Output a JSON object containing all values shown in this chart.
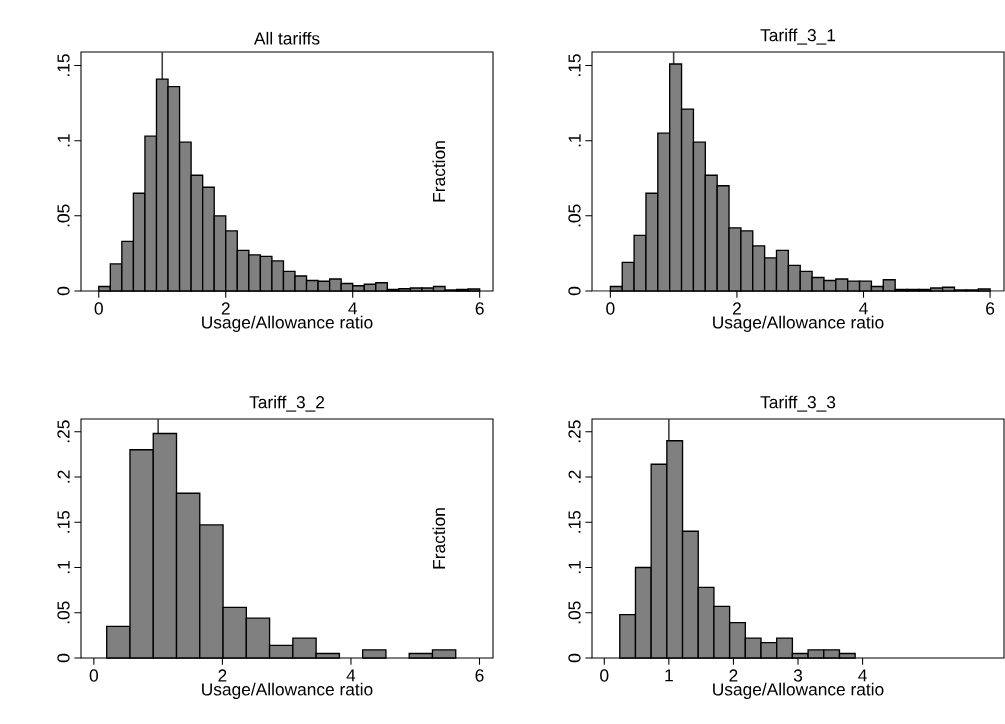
{
  "chart_data": [
    {
      "type": "histogram",
      "title": "All tariffs",
      "xlabel": "Usage/Allowance ratio",
      "color": "#808080",
      "bins": [
        0,
        0.1818,
        0.3636,
        0.5455,
        0.7273,
        0.9091,
        1.0909,
        1.2727,
        1.4545,
        1.6364,
        1.8182,
        2.0,
        2.1818,
        2.3636,
        2.5455,
        2.7273,
        2.9091,
        3.0909,
        3.2727,
        3.4545,
        3.6364,
        3.8182,
        4.0,
        4.1818,
        4.3636,
        4.5455,
        4.7273,
        4.9091,
        5.0909,
        5.2727,
        5.4545,
        5.6364,
        5.8182,
        6.0
      ],
      "values": [
        0.003,
        0.018,
        0.033,
        0.065,
        0.103,
        0.141,
        0.136,
        0.099,
        0.077,
        0.069,
        0.05,
        0.04,
        0.027,
        0.024,
        0.023,
        0.02,
        0.013,
        0.01,
        0.007,
        0.0065,
        0.008,
        0.005,
        0.0035,
        0.0045,
        0.0055,
        0.001,
        0.0015,
        0.002,
        0.002,
        0.003,
        0.0007,
        0.001,
        0.0013
      ],
      "xlim": [
        -0.28,
        6.21
      ],
      "ylim": [
        0,
        0.159
      ],
      "xticks": [
        0,
        2,
        4,
        6
      ],
      "yticks": [
        0,
        {
          "value": 0.05,
          "label": ".05"
        },
        {
          "value": 0.1,
          "label": ".1"
        },
        {
          "value": 0.15,
          "label": ".15"
        }
      ],
      "ref_lines": [
        {
          "axis": "x",
          "value": 1,
          "color": "#404040"
        }
      ]
    },
    {
      "type": "histogram",
      "title": "Tariff_3_1",
      "xlabel": "Usage/Allowance ratio",
      "ylabel": "Fraction",
      "color": "#808080",
      "bins": [
        0,
        0.1875,
        0.375,
        0.5625,
        0.75,
        0.9375,
        1.125,
        1.3125,
        1.5,
        1.6875,
        1.875,
        2.0625,
        2.25,
        2.4375,
        2.625,
        2.8125,
        3.0,
        3.1875,
        3.375,
        3.5625,
        3.75,
        3.9375,
        4.125,
        4.3125,
        4.5,
        4.6875,
        4.875,
        5.0625,
        5.25,
        5.4375,
        5.625,
        5.8125,
        6.0
      ],
      "values": [
        0.003,
        0.019,
        0.037,
        0.065,
        0.105,
        0.151,
        0.121,
        0.099,
        0.077,
        0.07,
        0.042,
        0.04,
        0.03,
        0.022,
        0.027,
        0.017,
        0.013,
        0.009,
        0.007,
        0.008,
        0.0066,
        0.0066,
        0.003,
        0.0075,
        0.001,
        0.001,
        0.001,
        0.002,
        0.0025,
        0.0007,
        0.0007,
        0.0013
      ],
      "xlim": [
        -0.29,
        6.22
      ],
      "ylim": [
        0,
        0.159
      ],
      "xticks": [
        0,
        2,
        4,
        6
      ],
      "yticks": [
        0,
        {
          "value": 0.05,
          "label": ".05"
        },
        {
          "value": 0.1,
          "label": ".1"
        },
        {
          "value": 0.15,
          "label": ".15"
        }
      ],
      "ref_lines": [
        {
          "axis": "x",
          "value": 1,
          "color": "#404040"
        }
      ]
    },
    {
      "type": "histogram",
      "title": "Tariff_3_2",
      "xlabel": "Usage/Allowance ratio",
      "color": "#808080",
      "bins": [
        0.2,
        0.562,
        0.924,
        1.286,
        1.648,
        2.01,
        2.372,
        2.734,
        3.096,
        3.458,
        3.82,
        4.182,
        4.544,
        4.906,
        5.268,
        5.63
      ],
      "values": [
        0.035,
        0.23,
        0.248,
        0.182,
        0.147,
        0.056,
        0.044,
        0.014,
        0.022,
        0.005,
        0,
        0.009,
        0,
        0.005,
        0.009
      ],
      "xlim": [
        -0.2,
        6.21
      ],
      "ylim": [
        0,
        0.264
      ],
      "xticks": [
        0,
        2,
        4,
        6
      ],
      "yticks": [
        0,
        {
          "value": 0.05,
          "label": ".05"
        },
        {
          "value": 0.1,
          "label": ".1"
        },
        {
          "value": 0.15,
          "label": ".15"
        },
        {
          "value": 0.2,
          "label": ".2"
        },
        {
          "value": 0.25,
          "label": ".25"
        }
      ],
      "ref_lines": [
        {
          "axis": "x",
          "value": 1,
          "color": "#404040"
        }
      ]
    },
    {
      "type": "histogram",
      "title": "Tariff_3_3",
      "xlabel": "Usage/Allowance ratio",
      "ylabel": "Fraction",
      "color": "#808080",
      "bins": [
        0.24,
        0.483,
        0.726,
        0.969,
        1.212,
        1.455,
        1.698,
        1.941,
        2.184,
        2.427,
        2.67,
        2.913,
        3.156,
        3.399,
        3.642,
        3.885
      ],
      "values": [
        0.048,
        0.1,
        0.214,
        0.24,
        0.14,
        0.078,
        0.057,
        0.039,
        0.022,
        0.017,
        0.022,
        0.005,
        0.009,
        0.009,
        0.005
      ],
      "xlim": [
        -0.19,
        6.19
      ],
      "ylim": [
        0,
        0.264
      ],
      "xticks": [
        0,
        1,
        2,
        3,
        4
      ],
      "yticks": [
        0,
        {
          "value": 0.05,
          "label": ".05"
        },
        {
          "value": 0.1,
          "label": ".1"
        },
        {
          "value": 0.15,
          "label": ".15"
        },
        {
          "value": 0.2,
          "label": ".2"
        },
        {
          "value": 0.25,
          "label": ".25"
        }
      ],
      "ref_lines": [
        {
          "axis": "x",
          "value": 1,
          "color": "#404040"
        }
      ]
    }
  ]
}
